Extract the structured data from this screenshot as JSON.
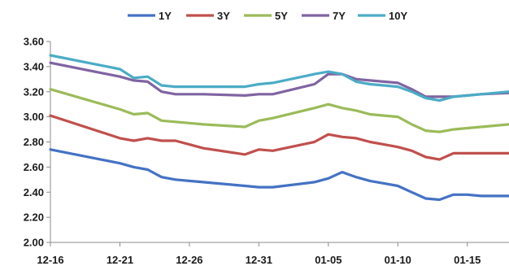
{
  "chart_data": {
    "type": "line",
    "title": "",
    "xlabel": "",
    "ylabel": "",
    "ylim": [
      2.0,
      3.6
    ],
    "yticks": [
      "2.00",
      "2.20",
      "2.40",
      "2.60",
      "2.80",
      "3.00",
      "3.20",
      "3.40",
      "3.60"
    ],
    "xlim": [
      0,
      33
    ],
    "xtick_labels": [
      {
        "x": 0,
        "label": "12-16"
      },
      {
        "x": 5,
        "label": "12-21"
      },
      {
        "x": 10,
        "label": "12-26"
      },
      {
        "x": 15,
        "label": "12-31"
      },
      {
        "x": 20,
        "label": "01-05"
      },
      {
        "x": 25,
        "label": "01-10"
      },
      {
        "x": 30,
        "label": "01-15"
      }
    ],
    "legend_position": "top",
    "grid": false,
    "x": [
      0,
      5,
      6,
      7,
      8,
      9,
      10,
      11,
      14,
      15,
      16,
      19,
      20,
      21,
      22,
      23,
      24,
      25,
      26,
      27,
      28,
      29,
      30,
      31,
      33
    ],
    "series": [
      {
        "name": "1Y",
        "color": "#4472c4",
        "values": [
          2.74,
          2.63,
          2.6,
          2.58,
          2.52,
          2.5,
          2.49,
          2.48,
          2.45,
          2.44,
          2.44,
          2.48,
          2.51,
          2.56,
          2.52,
          2.49,
          2.47,
          2.45,
          2.4,
          2.35,
          2.34,
          2.38,
          2.38,
          2.37,
          2.37
        ]
      },
      {
        "name": "3Y",
        "color": "#c0504d",
        "values": [
          3.01,
          2.83,
          2.81,
          2.83,
          2.81,
          2.81,
          2.78,
          2.75,
          2.7,
          2.74,
          2.73,
          2.8,
          2.86,
          2.84,
          2.83,
          2.8,
          2.78,
          2.76,
          2.73,
          2.68,
          2.66,
          2.71,
          2.71,
          2.71,
          2.71
        ]
      },
      {
        "name": "5Y",
        "color": "#9bbb59",
        "values": [
          3.22,
          3.06,
          3.02,
          3.03,
          2.97,
          2.96,
          2.95,
          2.94,
          2.92,
          2.97,
          2.99,
          3.07,
          3.1,
          3.07,
          3.05,
          3.02,
          3.01,
          3.0,
          2.94,
          2.89,
          2.88,
          2.9,
          2.91,
          2.92,
          2.94
        ]
      },
      {
        "name": "7Y",
        "color": "#8064a2",
        "values": [
          3.43,
          3.32,
          3.29,
          3.28,
          3.2,
          3.18,
          3.18,
          3.18,
          3.17,
          3.18,
          3.18,
          3.26,
          3.34,
          3.34,
          3.3,
          3.29,
          3.28,
          3.27,
          3.22,
          3.16,
          3.16,
          3.16,
          3.17,
          3.18,
          3.19
        ]
      },
      {
        "name": "10Y",
        "color": "#4bacc6",
        "values": [
          3.49,
          3.38,
          3.31,
          3.32,
          3.25,
          3.24,
          3.24,
          3.24,
          3.24,
          3.26,
          3.27,
          3.34,
          3.36,
          3.34,
          3.28,
          3.26,
          3.25,
          3.24,
          3.2,
          3.15,
          3.13,
          3.16,
          3.17,
          3.18,
          3.2
        ]
      }
    ]
  }
}
